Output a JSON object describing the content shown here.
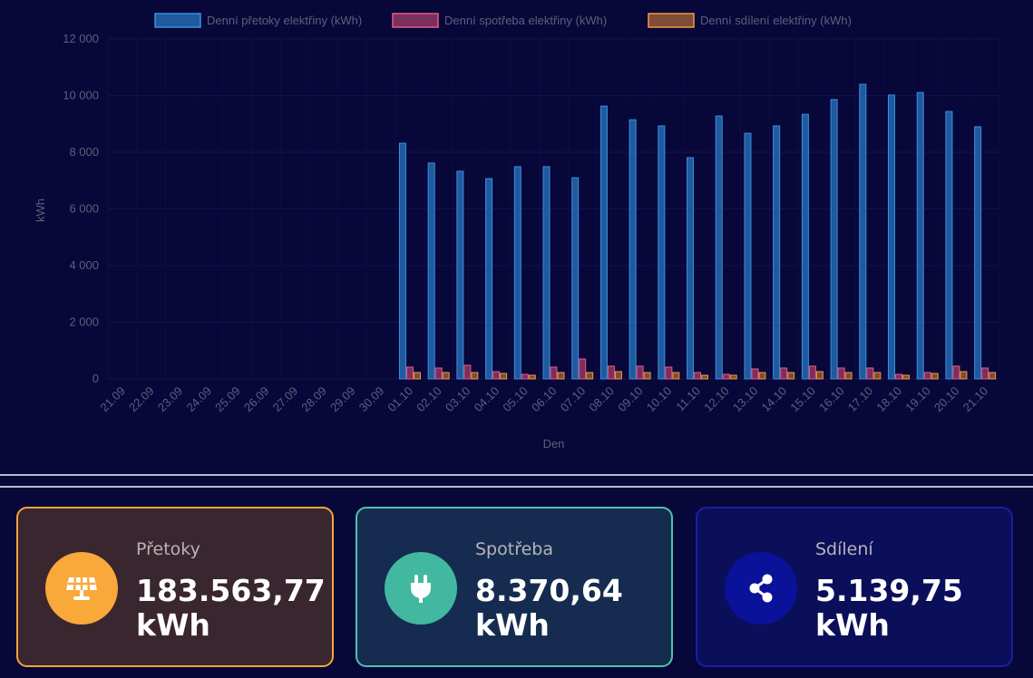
{
  "chart_data": {
    "type": "bar",
    "title": "",
    "xlabel": "Den",
    "ylabel": "kWh",
    "ylim": [
      0,
      12000
    ],
    "yticks": [
      0,
      2000,
      4000,
      6000,
      8000,
      10000,
      12000
    ],
    "ytick_labels": [
      "0",
      "2 000",
      "4 000",
      "6 000",
      "8 000",
      "10 000",
      "12 000"
    ],
    "grid": true,
    "legend_position": "top",
    "categories": [
      "21.09",
      "22.09",
      "23.09",
      "24.09",
      "25.09",
      "26.09",
      "27.09",
      "28.09",
      "29.09",
      "30.09",
      "01.10",
      "02.10",
      "03.10",
      "04.10",
      "05.10",
      "06.10",
      "07.10",
      "08.10",
      "09.10",
      "10.10",
      "11.10",
      "12.10",
      "13.10",
      "14.10",
      "15.10",
      "16.10",
      "17.10",
      "18.10",
      "19.10",
      "20.10",
      "21.10"
    ],
    "series": [
      {
        "name": "Denní přetoky elektřiny (kWh)",
        "fill": "#1f5a9e",
        "stroke": "#3a8fe0",
        "values": [
          0,
          0,
          0,
          0,
          0,
          0,
          0,
          0,
          0,
          0,
          8320,
          7620,
          7330,
          7070,
          7490,
          7490,
          7100,
          9630,
          9150,
          8930,
          7810,
          9280,
          8670,
          8930,
          9340,
          9860,
          10400,
          10020,
          10110,
          9440,
          8900
        ]
      },
      {
        "name": "Denní spotřeba elektřiny (kWh)",
        "fill": "#7a2f5c",
        "stroke": "#e8588a",
        "values": [
          0,
          0,
          0,
          0,
          0,
          0,
          0,
          0,
          0,
          0,
          416,
          384,
          480,
          256,
          160,
          416,
          704,
          448,
          448,
          416,
          224,
          160,
          352,
          384,
          448,
          384,
          384,
          160,
          224,
          448,
          384
        ]
      },
      {
        "name": "Denní sdílení elektřiny (kWh)",
        "fill": "#7f4c37",
        "stroke": "#f29a3a",
        "values": [
          0,
          0,
          0,
          0,
          0,
          0,
          0,
          0,
          0,
          0,
          224,
          224,
          224,
          192,
          128,
          224,
          224,
          256,
          224,
          224,
          128,
          128,
          224,
          224,
          256,
          224,
          224,
          128,
          192,
          256,
          224
        ]
      }
    ]
  },
  "cards": [
    {
      "title": "Přetoky",
      "value": "183.563,77",
      "unit": "kWh",
      "icon": "solar-panel-icon"
    },
    {
      "title": "Spotřeba",
      "value": "8.370,64",
      "unit": "kWh",
      "icon": "plug-icon"
    },
    {
      "title": "Sdílení",
      "value": "5.139,75",
      "unit": "kWh",
      "icon": "share-icon"
    }
  ]
}
